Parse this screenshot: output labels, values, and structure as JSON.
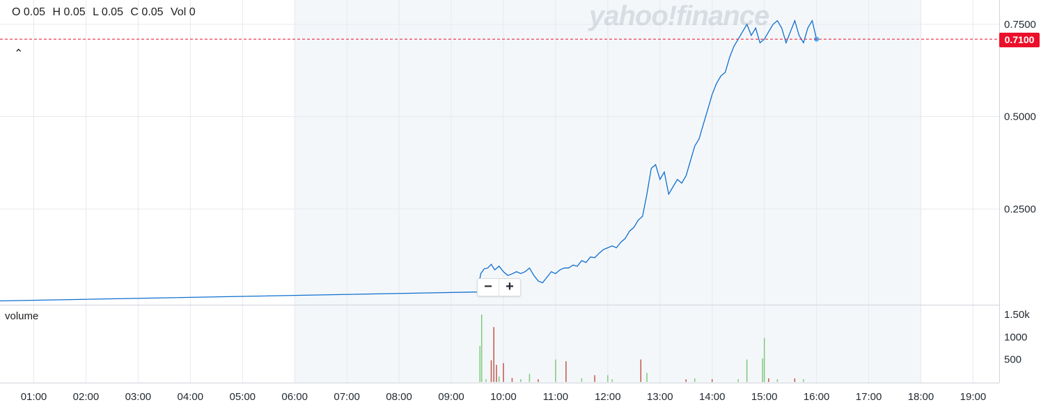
{
  "ohlc": {
    "open": "O 0.05",
    "high": "H 0.05",
    "low": "L 0.05",
    "close": "C 0.05",
    "volume": "Vol 0"
  },
  "watermark": "yahoo!finance",
  "collapse_icon": "chevron-up-icon",
  "zoom": {
    "minus": "−",
    "plus": "+"
  },
  "volume_label": "volume",
  "current_price_label": "0.7100",
  "colors": {
    "line": "#0d6ecf",
    "up": "#7ec97e",
    "down": "#c2544a",
    "price_tag": "#eb0f29",
    "market_hours_bg": "#f4f7fa",
    "grid": "#e6e9ed"
  },
  "chart_data": [
    {
      "type": "line",
      "title": "",
      "xlabel": "",
      "ylabel": "",
      "x_ticks": [
        "01:00",
        "02:00",
        "03:00",
        "04:00",
        "05:00",
        "06:00",
        "07:00",
        "08:00",
        "09:00",
        "10:00",
        "11:00",
        "12:00",
        "13:00",
        "14:00",
        "15:00",
        "16:00",
        "17:00",
        "18:00",
        "19:00"
      ],
      "y_ticks": [
        "0.7500",
        "0.5000",
        "0.2500"
      ],
      "ylim": [
        0.0,
        0.78
      ],
      "market_session": [
        "06:00",
        "18:00"
      ],
      "current_price": 0.71,
      "series": [
        {
          "x": [
            "00:00",
            "09:30",
            "09:34",
            "09:38",
            "09:42",
            "09:46",
            "09:50",
            "09:55",
            "10:00",
            "10:05",
            "10:10",
            "10:15",
            "10:20",
            "10:25",
            "10:30",
            "10:35",
            "10:40",
            "10:45",
            "10:50",
            "10:55",
            "11:00",
            "11:05",
            "11:10",
            "11:15",
            "11:20",
            "11:25",
            "11:30",
            "11:35",
            "11:40",
            "11:45",
            "11:50",
            "11:55",
            "12:00",
            "12:05",
            "12:10",
            "12:15",
            "12:20",
            "12:25",
            "12:30",
            "12:35",
            "12:40",
            "12:45",
            "12:50",
            "12:55",
            "13:00",
            "13:05",
            "13:10",
            "13:15",
            "13:20",
            "13:25",
            "13:30",
            "13:35",
            "13:40",
            "13:45",
            "13:50",
            "13:55",
            "14:00",
            "14:05",
            "14:10",
            "14:15",
            "14:20",
            "14:25",
            "14:30",
            "14:35",
            "14:40",
            "14:45",
            "14:50",
            "14:55",
            "15:00",
            "15:05",
            "15:10",
            "15:15",
            "15:20",
            "15:25",
            "15:30",
            "15:35",
            "15:40",
            "15:45",
            "15:50",
            "15:55",
            "16:00"
          ],
          "values": [
            0.0,
            0.025,
            0.075,
            0.088,
            0.09,
            0.1,
            0.085,
            0.095,
            0.08,
            0.07,
            0.074,
            0.08,
            0.075,
            0.08,
            0.09,
            0.07,
            0.055,
            0.05,
            0.065,
            0.08,
            0.075,
            0.085,
            0.09,
            0.09,
            0.098,
            0.095,
            0.11,
            0.105,
            0.12,
            0.118,
            0.13,
            0.14,
            0.145,
            0.15,
            0.145,
            0.16,
            0.17,
            0.19,
            0.2,
            0.22,
            0.23,
            0.29,
            0.36,
            0.37,
            0.33,
            0.35,
            0.29,
            0.31,
            0.33,
            0.32,
            0.34,
            0.38,
            0.42,
            0.44,
            0.48,
            0.52,
            0.56,
            0.59,
            0.61,
            0.62,
            0.66,
            0.69,
            0.71,
            0.73,
            0.75,
            0.72,
            0.74,
            0.7,
            0.71,
            0.73,
            0.75,
            0.76,
            0.74,
            0.7,
            0.73,
            0.76,
            0.72,
            0.7,
            0.74,
            0.76,
            0.71
          ]
        }
      ]
    },
    {
      "type": "bar",
      "title": "",
      "ylabel": "volume",
      "y_ticks": [
        "1.50k",
        "1000",
        "500"
      ],
      "ylim": [
        0,
        1600
      ],
      "bars": [
        {
          "x": "09:33",
          "value": 800,
          "dir": "up"
        },
        {
          "x": "09:35",
          "value": 1500,
          "dir": "up"
        },
        {
          "x": "09:40",
          "value": 60,
          "dir": "up"
        },
        {
          "x": "09:46",
          "value": 480,
          "dir": "down"
        },
        {
          "x": "09:49",
          "value": 1220,
          "dir": "down"
        },
        {
          "x": "09:52",
          "value": 380,
          "dir": "down"
        },
        {
          "x": "09:55",
          "value": 120,
          "dir": "up"
        },
        {
          "x": "10:00",
          "value": 420,
          "dir": "down"
        },
        {
          "x": "10:10",
          "value": 90,
          "dir": "down"
        },
        {
          "x": "10:20",
          "value": 60,
          "dir": "up"
        },
        {
          "x": "10:30",
          "value": 180,
          "dir": "up"
        },
        {
          "x": "10:40",
          "value": 60,
          "dir": "down"
        },
        {
          "x": "11:00",
          "value": 500,
          "dir": "up"
        },
        {
          "x": "11:12",
          "value": 460,
          "dir": "down"
        },
        {
          "x": "11:30",
          "value": 80,
          "dir": "up"
        },
        {
          "x": "11:45",
          "value": 150,
          "dir": "down"
        },
        {
          "x": "12:00",
          "value": 150,
          "dir": "up"
        },
        {
          "x": "12:05",
          "value": 60,
          "dir": "up"
        },
        {
          "x": "12:38",
          "value": 500,
          "dir": "down"
        },
        {
          "x": "12:45",
          "value": 200,
          "dir": "up"
        },
        {
          "x": "13:30",
          "value": 60,
          "dir": "down"
        },
        {
          "x": "13:40",
          "value": 80,
          "dir": "up"
        },
        {
          "x": "14:00",
          "value": 60,
          "dir": "down"
        },
        {
          "x": "14:30",
          "value": 60,
          "dir": "up"
        },
        {
          "x": "14:40",
          "value": 500,
          "dir": "up"
        },
        {
          "x": "14:58",
          "value": 520,
          "dir": "up"
        },
        {
          "x": "15:00",
          "value": 980,
          "dir": "up"
        },
        {
          "x": "15:05",
          "value": 80,
          "dir": "down"
        },
        {
          "x": "15:15",
          "value": 60,
          "dir": "up"
        },
        {
          "x": "15:35",
          "value": 80,
          "dir": "down"
        },
        {
          "x": "15:45",
          "value": 60,
          "dir": "up"
        }
      ]
    }
  ]
}
